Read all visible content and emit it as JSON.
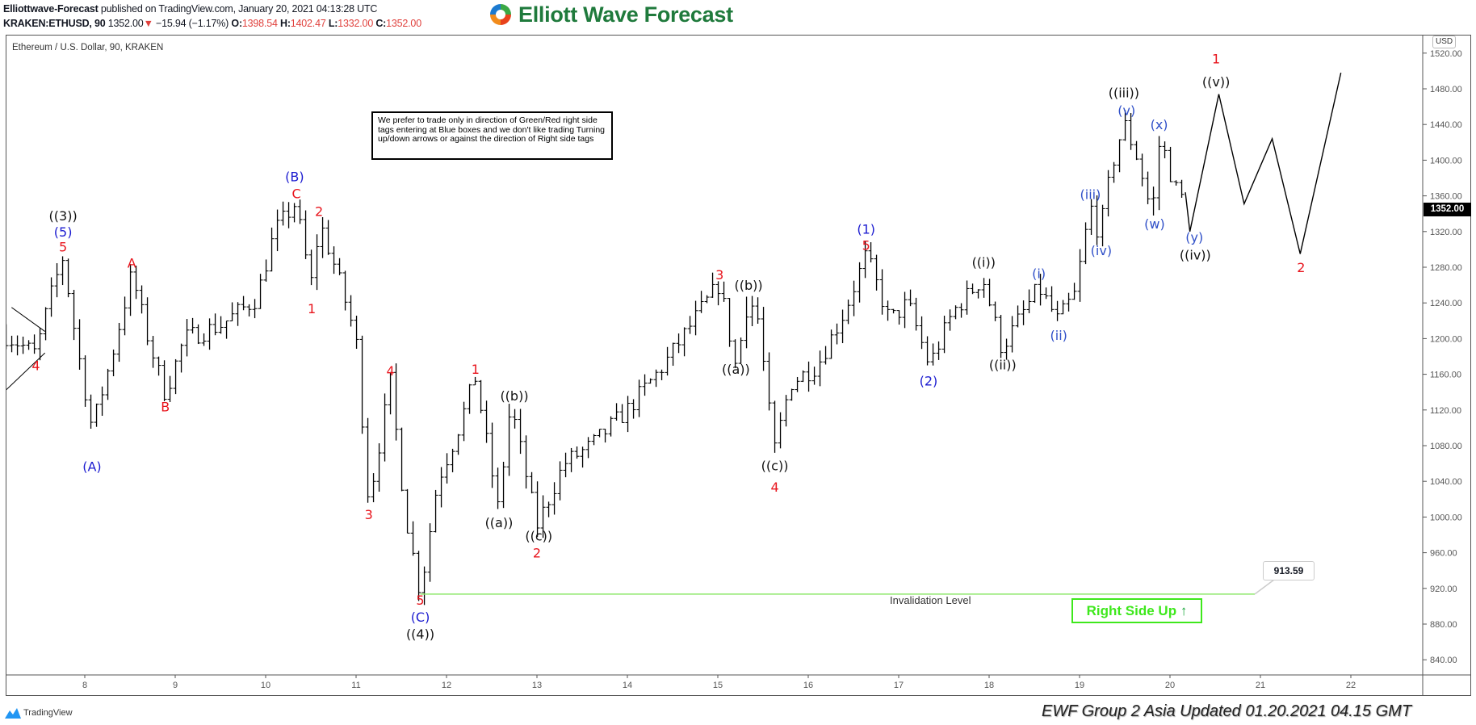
{
  "header": {
    "publisher": "Elliottwave-Forecast",
    "published_text": "published on TradingView.com, January 20, 2021 04:13:28 UTC",
    "symbol": "KRAKEN:ETHUSD, 90",
    "last": "1352.00",
    "change_arrow": "▼",
    "change": "−15.94 (−1.17%)",
    "o_label": "O:",
    "o": "1398.54",
    "h_label": "H:",
    "h": "1402.47",
    "l_label": "L:",
    "l": "1332.00",
    "c_label": "C:",
    "c": "1352.00"
  },
  "logo": {
    "text": "Elliott Wave Forecast"
  },
  "chart_title": "Ethereum / U.S. Dollar, 90, KRAKEN",
  "note": "We prefer to trade only in direction of Green/Red right side tags entering at Blue boxes and we don't like trading Turning up/down arrows or against the direction of Right side tags",
  "currency": "USD",
  "last_price_label": "1352.00",
  "invalidation": {
    "label": "Invalidation Level",
    "price_label": "913.59",
    "price": 913.59
  },
  "right_side": {
    "text": "Right Side Up",
    "arrow": "↑"
  },
  "footer": {
    "tradingview": "TradingView",
    "update": "EWF Group 2 Asia Updated 01.20.2021 04.15 GMT"
  },
  "colors": {
    "red": "#e8141c",
    "blue": "#1c1cd0",
    "lightblue": "#3050c8",
    "black": "#111111",
    "green": "#3ee81c"
  },
  "chart_data": {
    "type": "ohlc-bar",
    "ylim": [
      823,
      1540
    ],
    "xlim": [
      7.125,
      22.8
    ],
    "y_ticks": [
      "840.00",
      "880.00",
      "920.00",
      "960.00",
      "1000.00",
      "1040.00",
      "1080.00",
      "1120.00",
      "1160.00",
      "1200.00",
      "1240.00",
      "1280.00",
      "1320.00",
      "1360.00",
      "1400.00",
      "1440.00",
      "1480.00",
      "1520.00"
    ],
    "x_ticks": [
      "8",
      "9",
      "10",
      "11",
      "12",
      "13",
      "14",
      "15",
      "16",
      "17",
      "18",
      "19",
      "20",
      "21",
      "22"
    ],
    "price_path": [
      [
        7.1,
        1205
      ],
      [
        7.46,
        1183
      ],
      [
        7.6,
        1240
      ],
      [
        7.76,
        1292
      ],
      [
        7.9,
        1200
      ],
      [
        8.08,
        1099
      ],
      [
        8.3,
        1180
      ],
      [
        8.52,
        1273
      ],
      [
        8.7,
        1200
      ],
      [
        8.89,
        1138
      ],
      [
        9.1,
        1200
      ],
      [
        9.5,
        1215
      ],
      [
        9.9,
        1245
      ],
      [
        10.1,
        1320
      ],
      [
        10.33,
        1352
      ],
      [
        10.5,
        1260
      ],
      [
        10.6,
        1330
      ],
      [
        10.8,
        1270
      ],
      [
        11.0,
        1200
      ],
      [
        11.14,
        1016
      ],
      [
        11.38,
        1152
      ],
      [
        11.55,
        1000
      ],
      [
        11.71,
        914
      ],
      [
        11.9,
        1040
      ],
      [
        12.1,
        1090
      ],
      [
        12.32,
        1157
      ],
      [
        12.57,
        1009
      ],
      [
        12.71,
        1127
      ],
      [
        13.0,
        990
      ],
      [
        13.3,
        1060
      ],
      [
        13.6,
        1080
      ],
      [
        14.0,
        1120
      ],
      [
        14.4,
        1170
      ],
      [
        14.8,
        1230
      ],
      [
        15.02,
        1262
      ],
      [
        15.2,
        1167
      ],
      [
        15.34,
        1247
      ],
      [
        15.45,
        1220
      ],
      [
        15.62,
        1072
      ],
      [
        15.8,
        1150
      ],
      [
        16.1,
        1170
      ],
      [
        16.4,
        1230
      ],
      [
        16.64,
        1294
      ],
      [
        16.9,
        1220
      ],
      [
        17.1,
        1240
      ],
      [
        17.34,
        1170
      ],
      [
        17.6,
        1230
      ],
      [
        17.93,
        1268
      ],
      [
        18.14,
        1189
      ],
      [
        18.35,
        1225
      ],
      [
        18.55,
        1257
      ],
      [
        18.76,
        1220
      ],
      [
        18.95,
        1250
      ],
      [
        19.12,
        1349
      ],
      [
        19.22,
        1315
      ],
      [
        19.35,
        1390
      ],
      [
        19.49,
        1442
      ],
      [
        19.65,
        1400
      ],
      [
        19.8,
        1338
      ],
      [
        19.89,
        1426
      ],
      [
        20.05,
        1370
      ],
      [
        20.17,
        1352
      ]
    ],
    "projection": [
      [
        20.17,
        1364
      ],
      [
        20.22,
        1320
      ],
      [
        20.54,
        1474
      ],
      [
        20.82,
        1351
      ],
      [
        21.13,
        1424
      ],
      [
        21.44,
        1295
      ],
      [
        21.89,
        1498
      ]
    ],
    "triangle_lines": [
      [
        [
          7.19,
          1235
        ],
        [
          7.56,
          1208
        ]
      ],
      [
        [
          7.125,
          1142
        ],
        [
          7.56,
          1184
        ]
      ]
    ],
    "labels": [
      {
        "t": "((3))",
        "c": "black",
        "d": 7.76,
        "p": 1338
      },
      {
        "t": "(5)",
        "c": "blue",
        "d": 7.76,
        "p": 1320
      },
      {
        "t": "5",
        "c": "red",
        "d": 7.76,
        "p": 1303
      },
      {
        "t": "4",
        "c": "red",
        "d": 7.46,
        "p": 1170
      },
      {
        "t": "(A)",
        "c": "blue",
        "d": 8.08,
        "p": 1057
      },
      {
        "t": "A",
        "c": "red",
        "d": 8.52,
        "p": 1285
      },
      {
        "t": "B",
        "c": "red",
        "d": 8.89,
        "p": 1124
      },
      {
        "t": "(B)",
        "c": "blue",
        "d": 10.32,
        "p": 1382
      },
      {
        "t": "C",
        "c": "red",
        "d": 10.34,
        "p": 1363
      },
      {
        "t": "2",
        "c": "red",
        "d": 10.59,
        "p": 1343
      },
      {
        "t": "1",
        "c": "red",
        "d": 10.51,
        "p": 1234
      },
      {
        "t": "3",
        "c": "red",
        "d": 11.14,
        "p": 1003
      },
      {
        "t": "4",
        "c": "red",
        "d": 11.38,
        "p": 1164
      },
      {
        "t": "5",
        "c": "red",
        "d": 11.71,
        "p": 907
      },
      {
        "t": "(C)",
        "c": "blue",
        "d": 11.71,
        "p": 888
      },
      {
        "t": "((4))",
        "c": "black",
        "d": 11.71,
        "p": 869
      },
      {
        "t": "1",
        "c": "red",
        "d": 12.32,
        "p": 1166
      },
      {
        "t": "((b))",
        "c": "black",
        "d": 12.75,
        "p": 1136
      },
      {
        "t": "((a))",
        "c": "black",
        "d": 12.58,
        "p": 994
      },
      {
        "t": "((c))",
        "c": "black",
        "d": 13.02,
        "p": 979
      },
      {
        "t": "2",
        "c": "red",
        "d": 13.0,
        "p": 960
      },
      {
        "t": "3",
        "c": "red",
        "d": 15.02,
        "p": 1272
      },
      {
        "t": "((b))",
        "c": "black",
        "d": 15.34,
        "p": 1260
      },
      {
        "t": "((a))",
        "c": "black",
        "d": 15.2,
        "p": 1166
      },
      {
        "t": "((c))",
        "c": "black",
        "d": 15.63,
        "p": 1058
      },
      {
        "t": "4",
        "c": "red",
        "d": 15.63,
        "p": 1034
      },
      {
        "t": "(1)",
        "c": "blue",
        "d": 16.64,
        "p": 1323
      },
      {
        "t": "5",
        "c": "red",
        "d": 16.64,
        "p": 1305
      },
      {
        "t": "(2)",
        "c": "blue",
        "d": 17.33,
        "p": 1153
      },
      {
        "t": "((i))",
        "c": "black",
        "d": 17.94,
        "p": 1286
      },
      {
        "t": "((ii))",
        "c": "black",
        "d": 18.15,
        "p": 1171
      },
      {
        "t": "(i)",
        "c": "lightblue",
        "d": 18.55,
        "p": 1273
      },
      {
        "t": "(ii)",
        "c": "lightblue",
        "d": 18.77,
        "p": 1204
      },
      {
        "t": "(iii)",
        "c": "lightblue",
        "d": 19.12,
        "p": 1362
      },
      {
        "t": "(iv)",
        "c": "lightblue",
        "d": 19.24,
        "p": 1299
      },
      {
        "t": "((iii))",
        "c": "black",
        "d": 19.49,
        "p": 1476
      },
      {
        "t": "(v)",
        "c": "lightblue",
        "d": 19.52,
        "p": 1456
      },
      {
        "t": "(x)",
        "c": "lightblue",
        "d": 19.88,
        "p": 1440
      },
      {
        "t": "(w)",
        "c": "lightblue",
        "d": 19.83,
        "p": 1329
      },
      {
        "t": "(y)",
        "c": "lightblue",
        "d": 20.27,
        "p": 1314
      },
      {
        "t": "((iv))",
        "c": "black",
        "d": 20.28,
        "p": 1294
      },
      {
        "t": "1",
        "c": "red",
        "d": 20.51,
        "p": 1514
      },
      {
        "t": "((v))",
        "c": "black",
        "d": 20.51,
        "p": 1488
      },
      {
        "t": "2",
        "c": "red",
        "d": 21.45,
        "p": 1280
      }
    ]
  }
}
